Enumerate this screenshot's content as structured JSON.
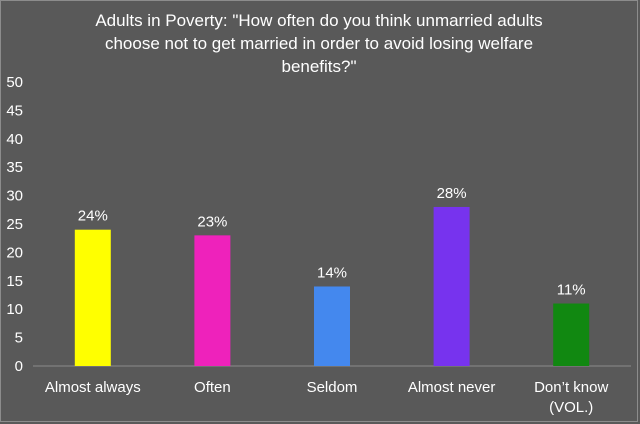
{
  "chart_data": {
    "type": "bar",
    "title_lines": [
      "Adults in Poverty: \"How often do you think unmarried adults",
      "choose not to get married in order to avoid losing welfare",
      "benefits?\""
    ],
    "categories": [
      [
        "Almost always"
      ],
      [
        "Often"
      ],
      [
        "Seldom"
      ],
      [
        "Almost never"
      ],
      [
        "Don’t know",
        "(VOL.)"
      ]
    ],
    "values": [
      24,
      23,
      14,
      28,
      11
    ],
    "data_labels": [
      "24%",
      "23%",
      "14%",
      "28%",
      "11%"
    ],
    "colors": [
      "#ffff00",
      "#ee22bb",
      "#4488ee",
      "#7733ee",
      "#118811"
    ],
    "ylim": [
      0,
      50
    ],
    "yticks": [
      0,
      5,
      10,
      15,
      20,
      25,
      30,
      35,
      40,
      45,
      50
    ],
    "xlabel": "",
    "ylabel": "",
    "grid": false,
    "legend": "none"
  }
}
